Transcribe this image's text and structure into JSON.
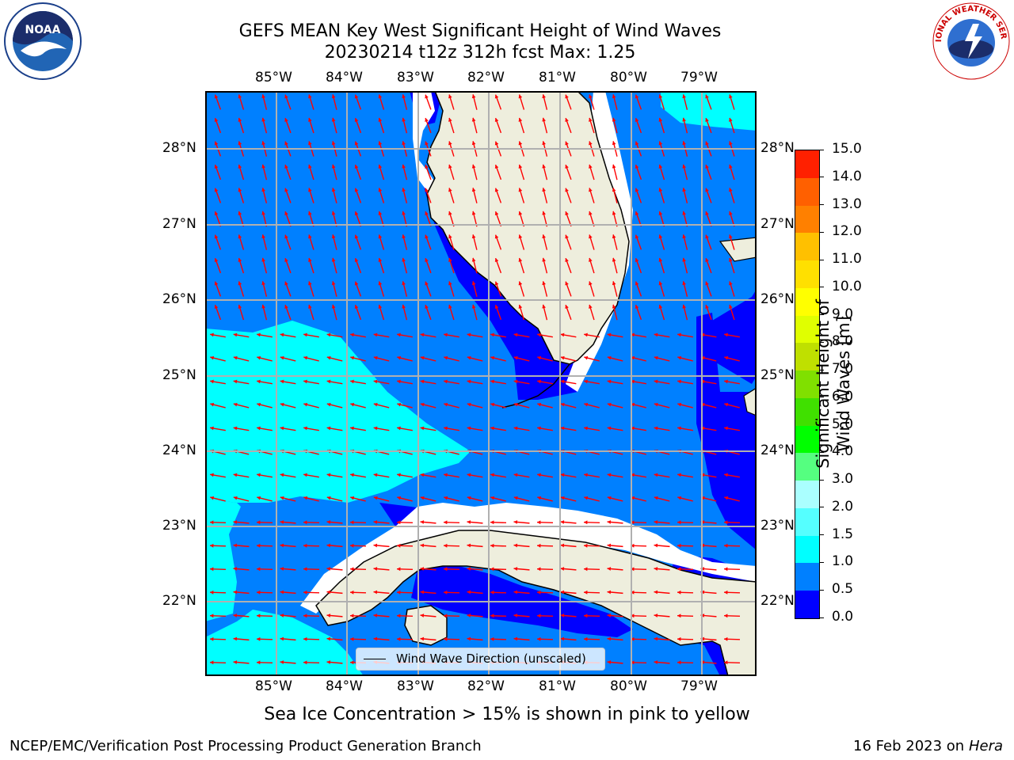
{
  "title_line1": "GEFS MEAN Key West Significant Height of Wind Waves",
  "title_line2": "20230214 t12z 312h fcst   Max: 1.25",
  "lon_labels": [
    "85°W",
    "84°W",
    "83°W",
    "82°W",
    "81°W",
    "80°W",
    "79°W"
  ],
  "lat_labels": [
    "28°N",
    "27°N",
    "26°N",
    "25°N",
    "24°N",
    "23°N",
    "22°N"
  ],
  "legend_label": "Wind Wave Direction (unscaled)",
  "subtitle": "Sea Ice Concentration > 15% is shown in pink to yellow",
  "credit_left": "NCEP/EMC/Verification Post Processing Product Generation Branch",
  "credit_date": "16 Feb 2023 on",
  "credit_machine": "Hera",
  "logos": {
    "left": "NOAA",
    "right": "NATIONAL WEATHER SERVICE"
  },
  "colorbar": {
    "label": "Significant Height of Wind Waves [m]",
    "tick_labels": [
      "0.0",
      "0.5",
      "1.0",
      "1.5",
      "2.0",
      "3.0",
      "4.0",
      "5.0",
      "6.0",
      "7.0",
      "8.0",
      "9.0",
      "10.0",
      "11.0",
      "12.0",
      "13.0",
      "14.0",
      "15.0"
    ],
    "colors": [
      "#0000ff",
      "#0080ff",
      "#00ffff",
      "#55ffff",
      "#aaffff",
      "#55ff80",
      "#00ff00",
      "#40e000",
      "#80e000",
      "#bfe000",
      "#e0ff00",
      "#ffff00",
      "#ffe000",
      "#ffc000",
      "#ff8000",
      "#ff6000",
      "#ff2000",
      "#ff0000"
    ]
  },
  "colors": {
    "land": "#eeeedd",
    "arrow": "#ff0000",
    "grid": "#b0b0b0",
    "wave_low": "#0000ff",
    "wave_mid": "#0080ff",
    "wave_high": "#00ffff"
  }
}
